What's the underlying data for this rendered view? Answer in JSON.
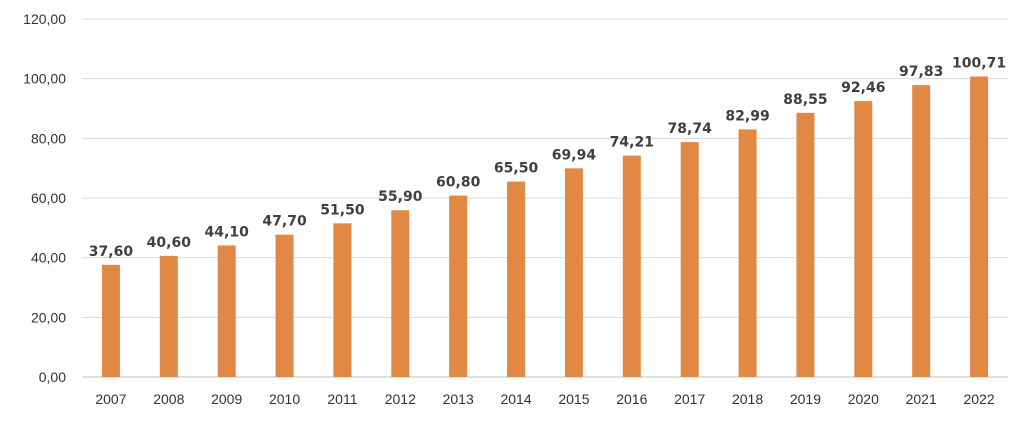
{
  "chart_data": {
    "type": "bar",
    "title": "",
    "xlabel": "",
    "ylabel": "",
    "categories": [
      "2007",
      "2008",
      "2009",
      "2010",
      "2011",
      "2012",
      "2013",
      "2014",
      "2015",
      "2016",
      "2017",
      "2018",
      "2019",
      "2020",
      "2021",
      "2022"
    ],
    "values": [
      37.6,
      40.6,
      44.1,
      47.7,
      51.5,
      55.9,
      60.8,
      65.5,
      69.94,
      74.21,
      78.74,
      82.99,
      88.55,
      92.46,
      97.83,
      100.71
    ],
    "value_labels": [
      "37,60",
      "40,60",
      "44,10",
      "47,70",
      "51,50",
      "55,90",
      "60,80",
      "65,50",
      "69,94",
      "74,21",
      "78,74",
      "82,99",
      "88,55",
      "92,46",
      "97,83",
      "100,71"
    ],
    "ylim": [
      0,
      120
    ],
    "yticks": [
      0,
      20,
      40,
      60,
      80,
      100,
      120
    ],
    "ytick_labels": [
      "0,00",
      "20,00",
      "40,00",
      "60,00",
      "80,00",
      "100,00",
      "120,00"
    ],
    "grid": true,
    "legend": "none",
    "bar_color": "#e08844"
  }
}
